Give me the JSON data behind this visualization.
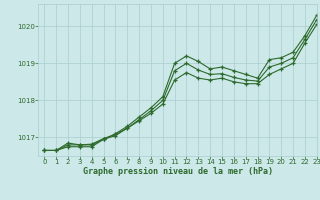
{
  "xlabel": "Graphe pression niveau de la mer (hPa)",
  "xlim": [
    -0.5,
    23
  ],
  "ylim": [
    1016.5,
    1020.6
  ],
  "yticks": [
    1017,
    1018,
    1019,
    1020
  ],
  "xticks": [
    0,
    1,
    2,
    3,
    4,
    5,
    6,
    7,
    8,
    9,
    10,
    11,
    12,
    13,
    14,
    15,
    16,
    17,
    18,
    19,
    20,
    21,
    22,
    23
  ],
  "bg_color": "#cce8e8",
  "line_color": "#2d6a2d",
  "grid_color": "#aacece",
  "line1": [
    1016.65,
    1016.65,
    1016.75,
    1016.75,
    1016.75,
    1016.95,
    1017.1,
    1017.3,
    1017.55,
    1017.8,
    1018.1,
    1019.0,
    1019.2,
    1019.05,
    1018.85,
    1018.9,
    1018.8,
    1018.7,
    1018.6,
    1019.1,
    1019.15,
    1019.3,
    1019.75,
    1020.3
  ],
  "line2": [
    1016.65,
    1016.65,
    1016.8,
    1016.8,
    1016.8,
    1016.95,
    1017.05,
    1017.25,
    1017.45,
    1017.65,
    1017.9,
    1018.55,
    1018.75,
    1018.6,
    1018.55,
    1018.6,
    1018.5,
    1018.45,
    1018.45,
    1018.7,
    1018.85,
    1019.0,
    1019.55,
    1020.05
  ],
  "line3": [
    1016.65,
    1016.65,
    1016.85,
    1016.8,
    1016.82,
    1016.97,
    1017.08,
    1017.25,
    1017.48,
    1017.72,
    1018.0,
    1018.8,
    1019.0,
    1018.82,
    1018.7,
    1018.72,
    1018.62,
    1018.55,
    1018.52,
    1018.9,
    1019.0,
    1019.15,
    1019.65,
    1020.18
  ]
}
